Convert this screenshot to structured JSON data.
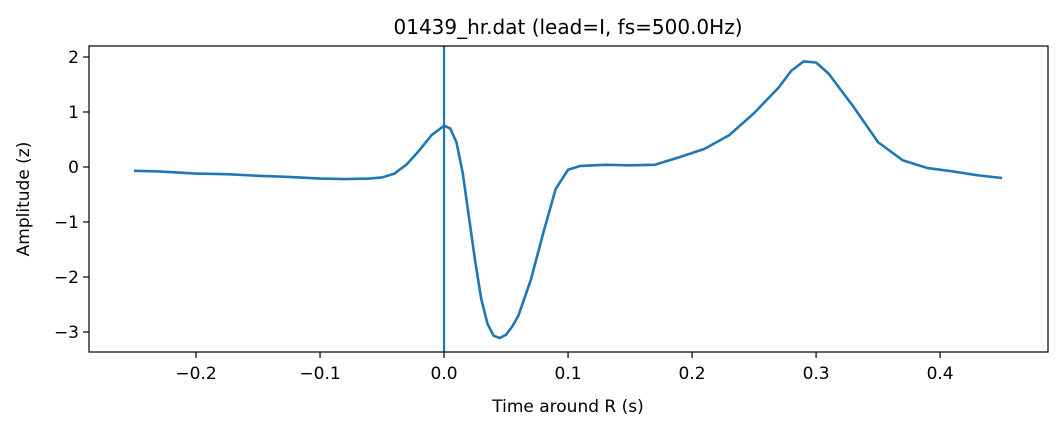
{
  "chart_data": {
    "type": "line",
    "title": "01439_hr.dat (lead=I, fs=500.0Hz)",
    "xlabel": "Time around R (s)",
    "ylabel": "Amplitude (z)",
    "x": [
      -0.25,
      -0.23,
      -0.2,
      -0.175,
      -0.15,
      -0.125,
      -0.1,
      -0.08,
      -0.06,
      -0.05,
      -0.04,
      -0.03,
      -0.02,
      -0.01,
      0,
      0.005,
      0.01,
      0.015,
      0.02,
      0.025,
      0.03,
      0.035,
      0.04,
      0.045,
      0.05,
      0.055,
      0.06,
      0.07,
      0.08,
      0.09,
      0.1,
      0.11,
      0.13,
      0.15,
      0.17,
      0.19,
      0.21,
      0.23,
      0.25,
      0.27,
      0.28,
      0.29,
      0.3,
      0.31,
      0.33,
      0.35,
      0.37,
      0.39,
      0.41,
      0.43,
      0.45
    ],
    "series": [
      {
        "color": "#1f77b4",
        "values": [
          -0.07,
          -0.08,
          -0.12,
          -0.13,
          -0.16,
          -0.18,
          -0.21,
          -0.22,
          -0.21,
          -0.19,
          -0.12,
          0.05,
          0.3,
          0.58,
          0.75,
          0.7,
          0.45,
          -0.1,
          -0.9,
          -1.7,
          -2.4,
          -2.85,
          -3.07,
          -3.11,
          -3.05,
          -2.9,
          -2.7,
          -2.05,
          -1.2,
          -0.4,
          -0.05,
          0.02,
          0.04,
          0.03,
          0.04,
          0.18,
          0.33,
          0.58,
          0.98,
          1.45,
          1.75,
          1.92,
          1.9,
          1.7,
          1.1,
          0.45,
          0.12,
          -0.02,
          -0.08,
          -0.15,
          -0.2
        ]
      }
    ],
    "vline": 0,
    "xlim": [
      -0.2863,
      0.487
    ],
    "ylim": [
      -3.364,
      2.2
    ],
    "xticks": [
      {
        "value": -0.2,
        "label": "−0.2"
      },
      {
        "value": -0.1,
        "label": "−0.1"
      },
      {
        "value": 0,
        "label": "0.0"
      },
      0.1,
      0.2,
      0.3,
      0.4
    ],
    "yticks": [
      {
        "value": -3,
        "label": "−3"
      },
      {
        "value": -2,
        "label": "−2"
      },
      {
        "value": -1,
        "label": "−1"
      },
      0,
      1,
      2
    ]
  }
}
